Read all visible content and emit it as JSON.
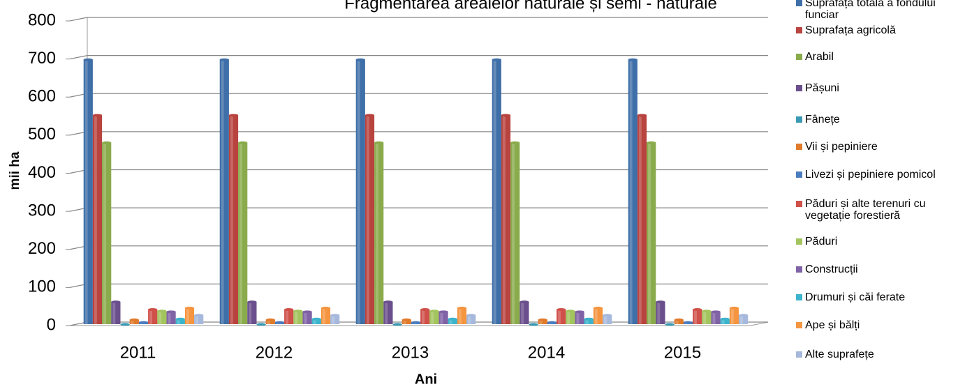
{
  "chart_data": {
    "type": "bar3d",
    "title": "Fragmentarea arealelor naturale și semi - naturale",
    "x_label": "Ani",
    "y_label": "mii ha",
    "categories": [
      "2011",
      "2012",
      "2013",
      "2014",
      "2015"
    ],
    "ylim": [
      0,
      800
    ],
    "yticks": [
      0,
      100,
      200,
      300,
      400,
      500,
      600,
      700,
      800
    ],
    "grid": true,
    "series": [
      {
        "name": "Suprafața totală a fondului funciar",
        "color": "#3f6fa8",
        "values": [
          698,
          698,
          698,
          698,
          698
        ]
      },
      {
        "name": "Suprafața agricolă",
        "color": "#b8433f",
        "values": [
          552,
          552,
          552,
          552,
          552
        ]
      },
      {
        "name": "Arabil",
        "color": "#8aab4c",
        "values": [
          480,
          480,
          480,
          480,
          480
        ]
      },
      {
        "name": "Pășuni",
        "color": "#6a4f8c",
        "values": [
          62,
          62,
          62,
          62,
          62
        ]
      },
      {
        "name": "Fânețe",
        "color": "#3a9ab3",
        "values": [
          3,
          3,
          3,
          3,
          3
        ]
      },
      {
        "name": "Vii și pepiniere",
        "color": "#e07b2c",
        "values": [
          15,
          15,
          15,
          15,
          15
        ]
      },
      {
        "name": "Livezi și pepiniere pomicol",
        "color": "#4a7cc0",
        "values": [
          8,
          8,
          8,
          8,
          8
        ]
      },
      {
        "name": "Păduri și alte terenuri cu vegetație forestieră",
        "color": "#d0504a",
        "values": [
          42,
          42,
          42,
          42,
          42
        ]
      },
      {
        "name": "Păduri",
        "color": "#a3c55e",
        "values": [
          38,
          38,
          38,
          38,
          38
        ]
      },
      {
        "name": "Construcții",
        "color": "#8062a6",
        "values": [
          36,
          36,
          36,
          36,
          36
        ]
      },
      {
        "name": "Drumuri și căi ferate",
        "color": "#3cb4cc",
        "values": [
          17,
          17,
          17,
          17,
          17
        ]
      },
      {
        "name": "Ape și bălți",
        "color": "#f59540",
        "values": [
          46,
          46,
          46,
          46,
          46
        ]
      },
      {
        "name": "Alte suprafețe",
        "color": "#a6b9dc",
        "values": [
          27,
          27,
          27,
          27,
          27
        ]
      }
    ]
  }
}
